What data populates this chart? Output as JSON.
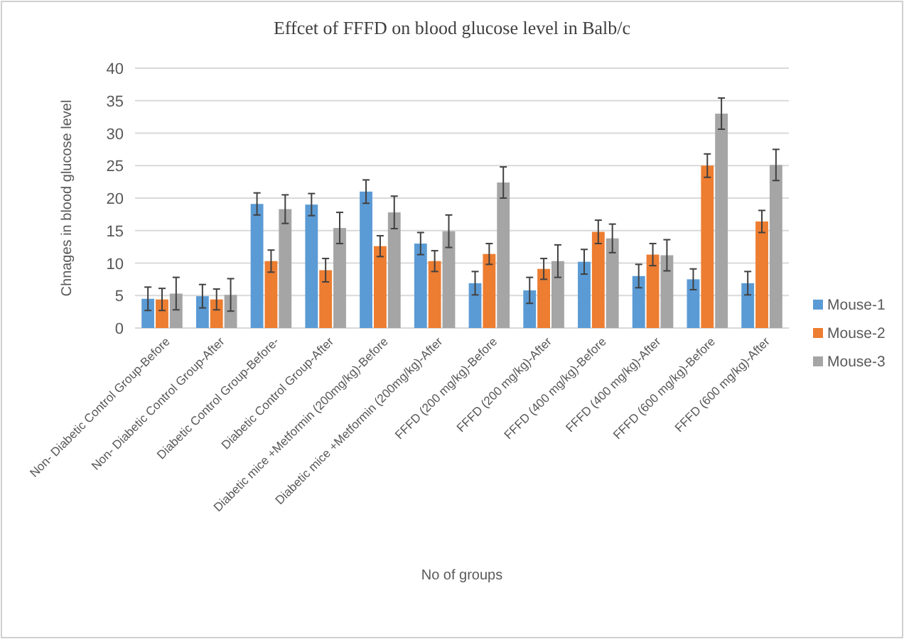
{
  "chart_data": {
    "type": "bar",
    "title": "Effcet of FFFD on blood glucose level in Balb/c",
    "xlabel": "No of groups",
    "ylabel": "Chnages in blood glucose level",
    "categories": [
      "Non- Diabetic Control Group-Before",
      "Non- Diabetic Control Group-After",
      "Diabetic Control Group-Before-",
      "Diabetic Control Group-After",
      "Diabetic mice +Metformin (200mg/kg)-Before",
      "Diabetic mice +Metformin (200mg/kg)-After",
      "FFFD (200 mg/kg)-Before",
      "FFFD (200 mg/kg)-After",
      "FFFD (400 mg/kg)-Before",
      "FFFD (400 mg/kg)-After",
      "FFFD (600 mg/kg)-Before",
      "FFFD (600 mg/kg)-After"
    ],
    "series": [
      {
        "name": "Mouse-1",
        "color": "#5b9bd5",
        "values": [
          4.5,
          4.9,
          19.1,
          19,
          21,
          13,
          6.9,
          5.8,
          10.2,
          8,
          7.5,
          6.9
        ],
        "errors": [
          1.8,
          1.8,
          1.7,
          1.7,
          1.8,
          1.7,
          1.8,
          2,
          1.9,
          1.8,
          1.6,
          1.8
        ]
      },
      {
        "name": "Mouse-2",
        "color": "#ed7d31",
        "values": [
          4.4,
          4.4,
          10.3,
          8.9,
          12.6,
          10.3,
          11.4,
          9.1,
          14.8,
          11.3,
          25,
          16.4
        ],
        "errors": [
          1.7,
          1.6,
          1.7,
          1.8,
          1.6,
          1.6,
          1.6,
          1.6,
          1.8,
          1.7,
          1.8,
          1.7
        ]
      },
      {
        "name": "Mouse-3",
        "color": "#a5a5a5",
        "values": [
          5.3,
          5.1,
          18.3,
          15.4,
          17.8,
          14.9,
          22.4,
          10.3,
          13.8,
          11.2,
          33,
          25.1
        ],
        "errors": [
          2.5,
          2.5,
          2.2,
          2.4,
          2.5,
          2.5,
          2.4,
          2.5,
          2.2,
          2.4,
          2.4,
          2.4
        ]
      }
    ],
    "ylim": [
      0,
      40
    ],
    "yticks": [
      0,
      5,
      10,
      15,
      20,
      25,
      30,
      35,
      40
    ],
    "grid": "y",
    "legend": "right"
  }
}
